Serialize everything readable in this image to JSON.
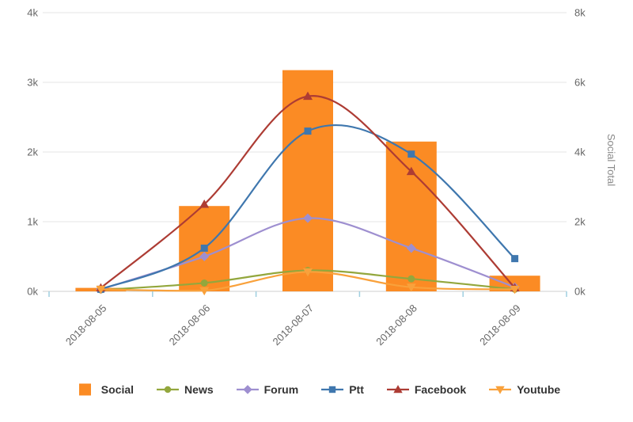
{
  "chart_data": {
    "type": "bar+line combo",
    "categories": [
      "2018-08-05",
      "2018-08-06",
      "2018-08-07",
      "2018-08-08",
      "2018-08-09"
    ],
    "left_axis": {
      "max": 4000,
      "tick_values": [
        0,
        1000,
        2000,
        3000,
        4000
      ],
      "tick_labels": [
        "0k",
        "1k",
        "2k",
        "3k",
        "4k"
      ]
    },
    "right_axis": {
      "label": "Social Total",
      "max": 8000,
      "tick_values": [
        0,
        2000,
        4000,
        6000,
        8000
      ],
      "tick_labels": [
        "0k",
        "2k",
        "4k",
        "6k",
        "8k"
      ]
    },
    "series": [
      {
        "name": "Social",
        "type": "bar",
        "axis": "right",
        "color": "#fb8b24",
        "values": [
          100,
          2450,
          6350,
          4300,
          450
        ]
      },
      {
        "name": "News",
        "type": "line",
        "axis": "left",
        "marker": "circle",
        "color": "#93a73d",
        "values": [
          20,
          120,
          300,
          180,
          30
        ]
      },
      {
        "name": "Forum",
        "type": "line",
        "axis": "left",
        "marker": "diamond",
        "color": "#9e8fd0",
        "values": [
          30,
          500,
          1050,
          620,
          60
        ]
      },
      {
        "name": "Ptt",
        "type": "line",
        "axis": "left",
        "marker": "square",
        "color": "#3f77ae",
        "values": [
          30,
          620,
          2300,
          1970,
          470
        ]
      },
      {
        "name": "Facebook",
        "type": "line",
        "axis": "left",
        "marker": "triangle-up",
        "color": "#ad3c34",
        "values": [
          50,
          1250,
          2800,
          1720,
          50
        ]
      },
      {
        "name": "Youtube",
        "type": "line",
        "axis": "left",
        "marker": "triangle-down",
        "color": "#f9a13b",
        "values": [
          30,
          10,
          280,
          60,
          30
        ]
      }
    ],
    "grid": true,
    "legend_position": "bottom",
    "styles": {
      "gridline_color": "#e4e4e4",
      "baseline_color": "#cfcfcf",
      "axis_tick_color": "#9fcfe0",
      "tick_text_color": "#666666",
      "axis_title_color": "#8a8a8a"
    }
  }
}
